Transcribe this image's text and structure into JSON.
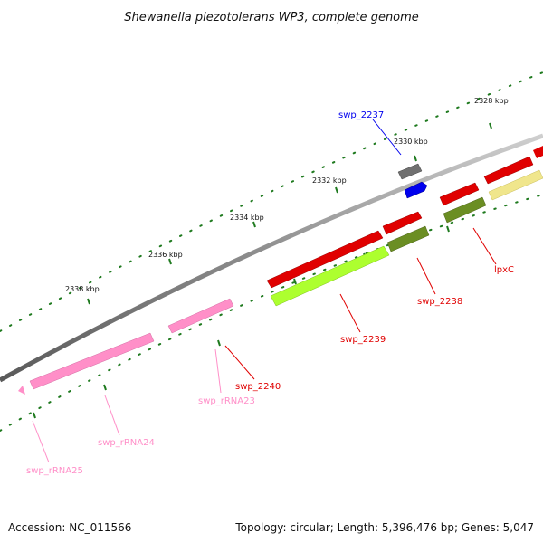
{
  "title": "Shewanella piezotolerans WP3, complete genome",
  "footer": {
    "accession": "Accession: NC_011566",
    "summary": "Topology: circular; Length: 5,396,476 bp; Genes: 5,047"
  },
  "colors": {
    "backbone": "#8a8a8a",
    "tick_marks": "#1f7a1f",
    "cds_red": "#e00000",
    "cds_olive": "#6b8e23",
    "cds_lime": "#adff2f",
    "cds_khaki": "#f0e68c",
    "cds_gray": "#707070",
    "cds_blue": "#0000ee",
    "rrna_pink": "#ff8fc8"
  },
  "scale_labels": [
    "2328 kbp",
    "2330 kbp",
    "2332 kbp",
    "2334 kbp",
    "2336 kbp",
    "2338 kbp"
  ],
  "features": [
    {
      "name": "swp_2237",
      "color": "#0000ee"
    },
    {
      "name": "lpxC",
      "color": "#e00000"
    },
    {
      "name": "swp_2238",
      "color": "#e00000"
    },
    {
      "name": "swp_2239",
      "color": "#e00000"
    },
    {
      "name": "swp_2240",
      "color": "#e00000"
    },
    {
      "name": "swp_rRNA23",
      "color": "#ff8fc8"
    },
    {
      "name": "swp_rRNA24",
      "color": "#ff8fc8"
    },
    {
      "name": "swp_rRNA25",
      "color": "#ff8fc8"
    }
  ]
}
